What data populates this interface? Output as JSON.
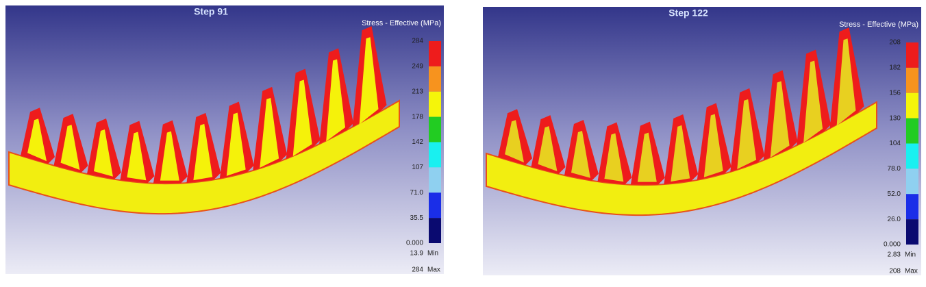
{
  "panels": [
    {
      "title": "Step  91",
      "legend_title": "Stress - Effective (MPa)",
      "scale_labels": [
        "284",
        "249",
        "213",
        "178",
        "142",
        "107",
        "71.0",
        "35.5",
        "0.000"
      ],
      "min_value": "13.9",
      "min_label": "Min",
      "max_value": "284",
      "max_label": "Max"
    },
    {
      "title": "Step  122",
      "legend_title": "Stress - Effective (MPa)",
      "scale_labels": [
        "208",
        "182",
        "156",
        "130",
        "104",
        "78.0",
        "52.0",
        "26.0",
        "0.000"
      ],
      "min_value": "2.83",
      "min_label": "Min",
      "max_value": "208",
      "max_label": "Max"
    }
  ]
}
